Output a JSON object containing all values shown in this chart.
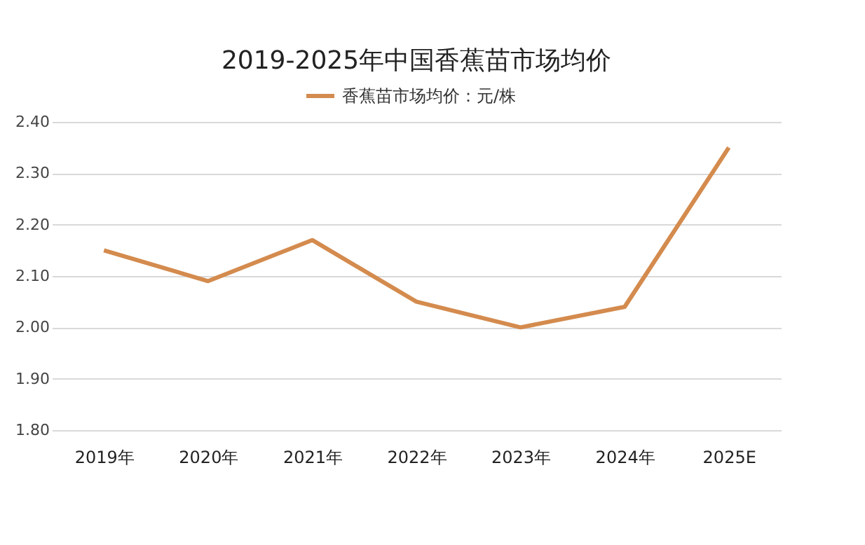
{
  "chart_data": {
    "type": "line",
    "title": "2019-2025年中国香蕉苗市场均价",
    "categories": [
      "2019年",
      "2020年",
      "2021年",
      "2022年",
      "2023年",
      "2024年",
      "2025E"
    ],
    "series": [
      {
        "name": "香蕉苗市场均价：元/株",
        "color": "#d48b4e",
        "values": [
          2.15,
          2.09,
          2.17,
          2.05,
          2.0,
          2.04,
          2.35
        ]
      }
    ],
    "ylim": [
      1.8,
      2.4
    ],
    "yticks": [
      {
        "value": 1.8,
        "label": "1.80"
      },
      {
        "value": 1.9,
        "label": "1.90"
      },
      {
        "value": 2.0,
        "label": "2.00"
      },
      {
        "value": 2.1,
        "label": "2.10"
      },
      {
        "value": 2.2,
        "label": "2.20"
      },
      {
        "value": 2.3,
        "label": "2.30"
      },
      {
        "value": 2.4,
        "label": "2.40"
      }
    ],
    "grid": "y",
    "legend": "top",
    "marker": "none",
    "line_style": "solid"
  }
}
